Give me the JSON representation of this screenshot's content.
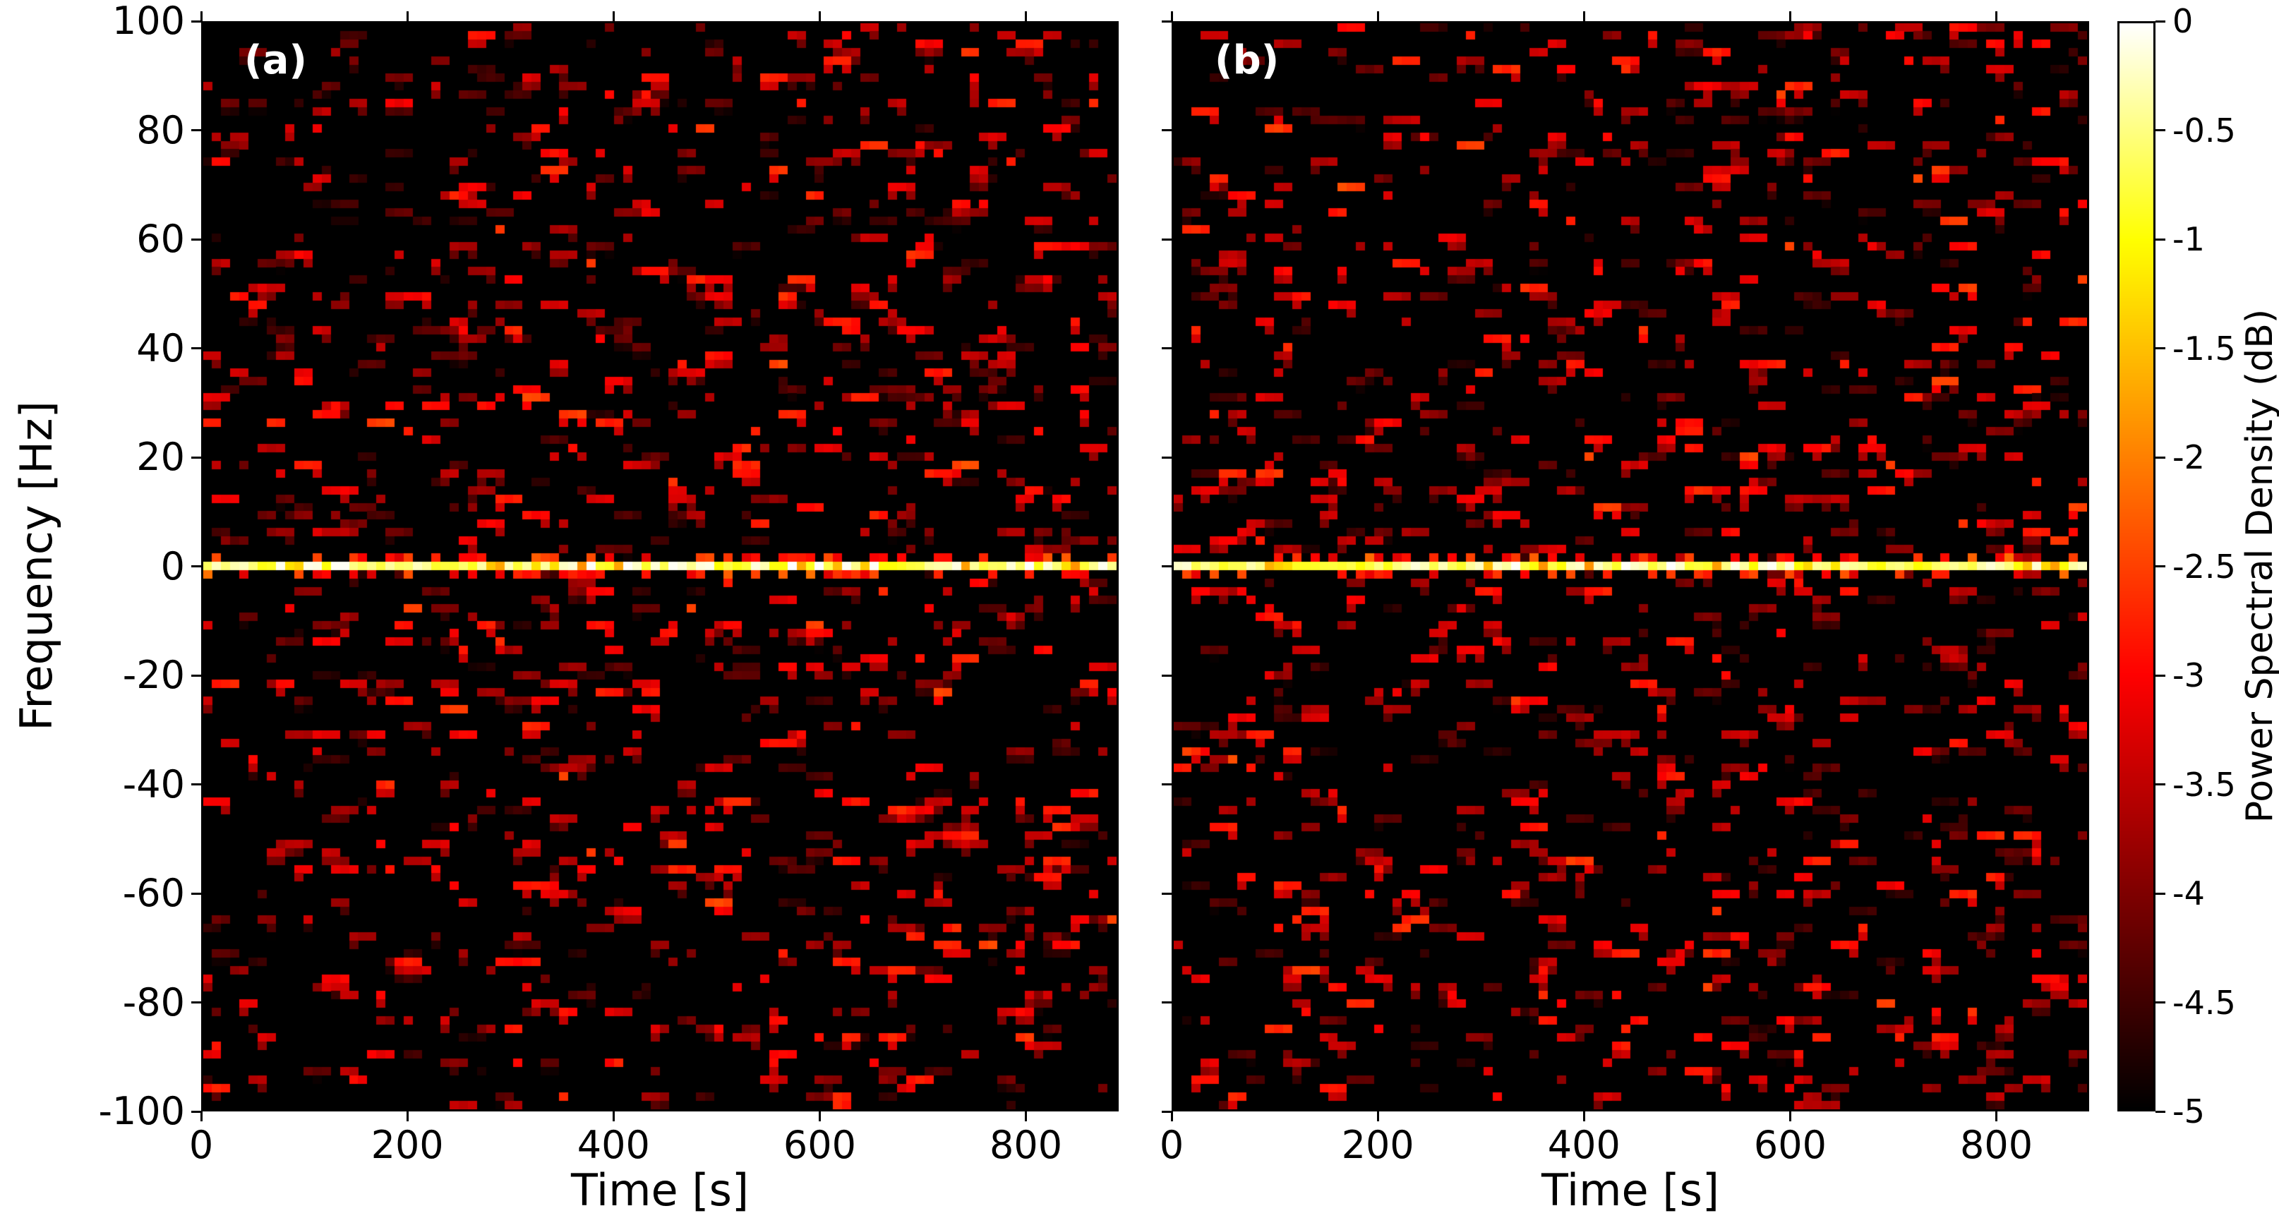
{
  "figure": {
    "panels": [
      {
        "id": "a",
        "label": "(a)",
        "xlabel": "Time [s]"
      },
      {
        "id": "b",
        "label": "(b)",
        "xlabel": "Time [s]"
      }
    ],
    "ylabel": "Frequency [Hz]",
    "x_ticks": {
      "values": [
        0,
        200,
        400,
        600,
        800
      ],
      "labels": [
        "0",
        "200",
        "400",
        "600",
        "800"
      ]
    },
    "y_ticks": {
      "values": [
        100,
        80,
        60,
        40,
        20,
        0,
        -20,
        -40,
        -60,
        -80,
        -100
      ],
      "labels": [
        "100",
        "80",
        "60",
        "40",
        "20",
        "0",
        "-20",
        "-40",
        "-60",
        "-80",
        "-100"
      ]
    },
    "colorbar": {
      "label": "Power Spectral Density (dB)",
      "min": -5,
      "max": 0,
      "tick_values": [
        0,
        -0.5,
        -1,
        -1.5,
        -2,
        -2.5,
        -3,
        -3.5,
        -4,
        -4.5,
        -5
      ],
      "tick_labels": [
        "0",
        "-0.5",
        "-1",
        "-1.5",
        "-2",
        "-2.5",
        "-3",
        "-3.5",
        "-4",
        "-4.5",
        "-5"
      ],
      "colormap": "hot",
      "colormap_stops": [
        "#000000",
        "#800000",
        "#ff0000",
        "#ff8000",
        "#ffff00",
        "#ffffff"
      ]
    }
  },
  "chart_data": [
    {
      "type": "heatmap",
      "panel": "(a)",
      "title": "",
      "xlabel": "Time [s]",
      "ylabel": "Frequency [Hz]",
      "xlim": [
        0,
        890
      ],
      "ylim": [
        -100,
        100
      ],
      "x_ticks": [
        0,
        200,
        400,
        600,
        800
      ],
      "y_ticks": [
        100,
        80,
        60,
        40,
        20,
        0,
        -20,
        -40,
        -60,
        -80,
        -100
      ],
      "value_label": "Power Spectral Density (dB)",
      "value_range_db": [
        -5,
        0
      ],
      "colormap": "hot",
      "features": {
        "carrier_line": {
          "frequency_hz": 0,
          "psd_db_range": [
            -1,
            0
          ],
          "description": "bright continuous yellow-white horizontal line at 0 Hz spanning all times"
        },
        "background": {
          "psd_db_floor": -5,
          "burst_psd_db_range": [
            -4.7,
            -2.5
          ],
          "burst_duration_bins": [
            1,
            3
          ],
          "fill_fraction": 0.2,
          "description": "sparse speckled dark-red/red noise bursts over a black -5 dB floor"
        }
      },
      "render": {
        "time_bins": 100,
        "freq_bins": 129,
        "seed": 1337
      }
    },
    {
      "type": "heatmap",
      "panel": "(b)",
      "title": "",
      "xlabel": "Time [s]",
      "ylabel": "Frequency [Hz]",
      "xlim": [
        0,
        890
      ],
      "ylim": [
        -100,
        100
      ],
      "x_ticks": [
        0,
        200,
        400,
        600,
        800
      ],
      "y_ticks": [
        100,
        80,
        60,
        40,
        20,
        0,
        -20,
        -40,
        -60,
        -80,
        -100
      ],
      "value_label": "Power Spectral Density (dB)",
      "value_range_db": [
        -5,
        0
      ],
      "colormap": "hot",
      "features": {
        "carrier_line": {
          "frequency_hz": 0,
          "psd_db_range": [
            -1,
            0
          ],
          "description": "bright continuous yellow-white horizontal line at 0 Hz spanning all times"
        },
        "background": {
          "psd_db_floor": -5,
          "burst_psd_db_range": [
            -4.7,
            -2.5
          ],
          "burst_duration_bins": [
            1,
            3
          ],
          "fill_fraction": 0.2,
          "description": "sparse speckled dark-red/red noise bursts over a black -5 dB floor"
        }
      },
      "render": {
        "time_bins": 100,
        "freq_bins": 129,
        "seed": 7331
      }
    }
  ]
}
